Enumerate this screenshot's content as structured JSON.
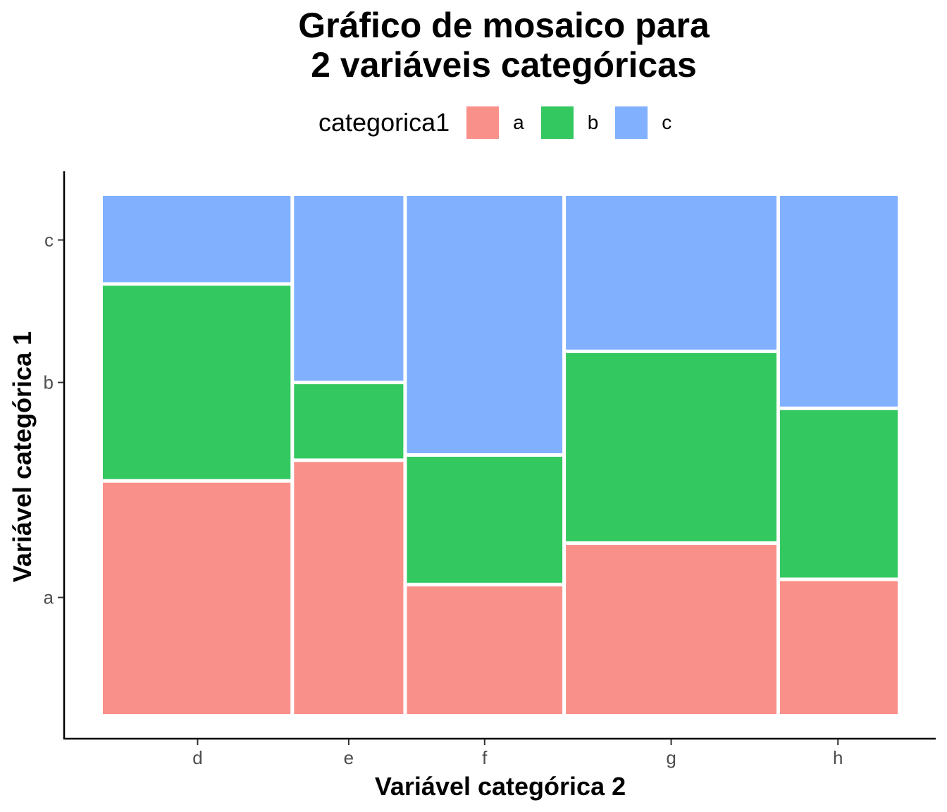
{
  "chart_data": {
    "type": "mosaic",
    "title_line1": "Gráfico de mosaico para",
    "title_line2": "2 variáveis categóricas",
    "xlabel": "Variável categórica 2",
    "ylabel": "Variável categórica 1",
    "legend_title": "categorica1",
    "legend_position": "top",
    "grid": false,
    "y_tick_labels": [
      "a",
      "b",
      "c"
    ],
    "categories": [
      "d",
      "e",
      "f",
      "g",
      "h"
    ],
    "column_widths": [
      0.23,
      0.137,
      0.193,
      0.26,
      0.145
    ],
    "series": [
      {
        "name": "a",
        "color": "#F8766D",
        "values": [
          0.45,
          0.49,
          0.25,
          0.33,
          0.26
        ]
      },
      {
        "name": "b",
        "color": "#00BA38",
        "values": [
          0.38,
          0.15,
          0.25,
          0.37,
          0.33
        ]
      },
      {
        "name": "c",
        "color": "#619CFF",
        "values": [
          0.17,
          0.36,
          0.5,
          0.3,
          0.41
        ]
      }
    ],
    "fill_alpha": 0.8
  }
}
